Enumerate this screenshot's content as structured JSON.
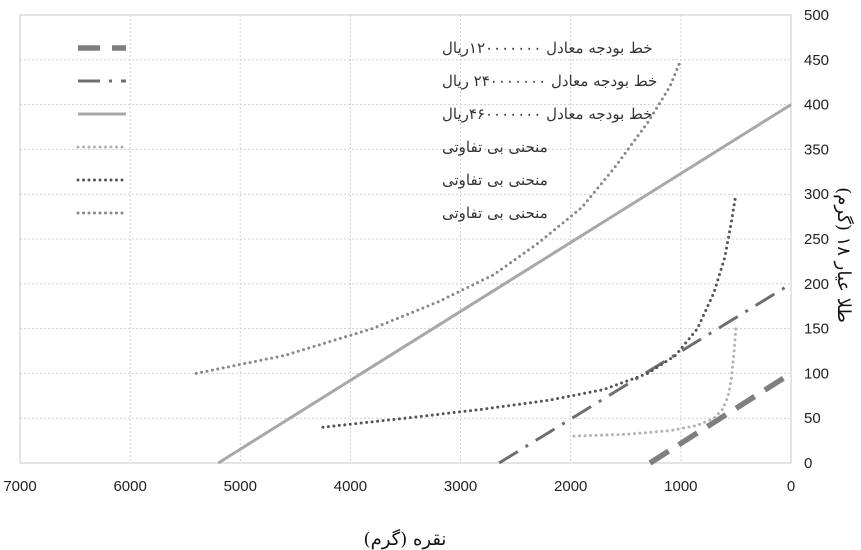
{
  "chart_data": {
    "type": "line",
    "xlabel": "نقره (گرم)",
    "ylabel": "طلا عیار ۱۸ (گرم)",
    "xlim": [
      7000,
      0
    ],
    "ylim": [
      0,
      500
    ],
    "x_reversed": true,
    "y_axis_side": "right",
    "grid": true,
    "legend_position": "top-left",
    "x_ticks": [
      "7000",
      "6000",
      "5000",
      "4000",
      "3000",
      "2000",
      "1000",
      "0"
    ],
    "y_ticks": [
      "0",
      "50",
      "100",
      "150",
      "200",
      "250",
      "300",
      "350",
      "400",
      "450",
      "500"
    ],
    "series": [
      {
        "name": "خط بودجه معادل ۱۲۰۰۰۰۰۰۰ریال",
        "style": "dashed",
        "color": "#7f7f7f",
        "x": [
          1280,
          0
        ],
        "y": [
          0,
          100
        ]
      },
      {
        "name": "خط بودجه معادل ۲۴۰۰۰۰۰۰۰ ریال",
        "style": "dashdot",
        "color": "#6e6e6e",
        "x": [
          2650,
          0
        ],
        "y": [
          0,
          200
        ]
      },
      {
        "name": "خط بودجه معادل ۴۶۰۰۰۰۰۰۰ریال",
        "style": "solid",
        "color": "#a8a8a8",
        "x": [
          5200,
          0
        ],
        "y": [
          0,
          400
        ]
      },
      {
        "name": "منحنی بی تفاوتی",
        "style": "dotted",
        "color": "#b3b3b3",
        "x": [
          1970,
          1500,
          1100,
          850,
          700,
          620,
          570,
          540,
          520,
          500
        ],
        "y": [
          30,
          32,
          36,
          42,
          50,
          60,
          75,
          95,
          120,
          150
        ]
      },
      {
        "name": "منحنی بی تفاوتی",
        "style": "dotted",
        "color": "#555555",
        "x": [
          4250,
          3500,
          2800,
          2200,
          1700,
          1300,
          1050,
          850,
          700,
          600,
          540,
          500
        ],
        "y": [
          40,
          50,
          60,
          70,
          82,
          100,
          120,
          150,
          190,
          230,
          270,
          300
        ]
      },
      {
        "name": "منحنی بی تفاوتی",
        "style": "dotted",
        "color": "#888888",
        "x": [
          5400,
          4600,
          3800,
          3200,
          2700,
          2300,
          1900,
          1600,
          1300,
          1100,
          1000
        ],
        "y": [
          100,
          120,
          150,
          180,
          210,
          245,
          285,
          330,
          380,
          420,
          450
        ]
      }
    ]
  }
}
